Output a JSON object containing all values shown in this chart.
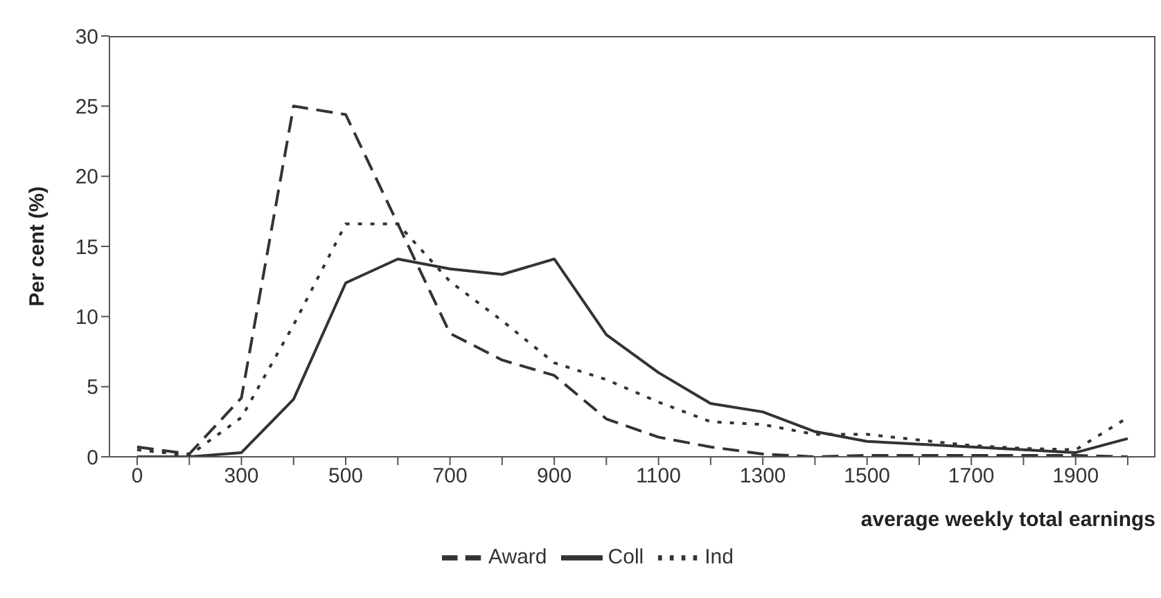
{
  "chart_data": {
    "type": "line",
    "ylabel": "Per cent (%)",
    "xlabel": "average weekly total earnings",
    "categories": [
      "0",
      null,
      "300",
      null,
      "500",
      null,
      "700",
      null,
      "900",
      null,
      "1100",
      null,
      "1300",
      null,
      "1500",
      null,
      "1700",
      null,
      "1900",
      null
    ],
    "series": [
      {
        "name": "Award",
        "color": "#333333",
        "line_style": "dashed",
        "values": [
          0.7,
          0.2,
          4.2,
          25,
          24.4,
          16.6,
          8.8,
          6.9,
          5.8,
          2.7,
          1.4,
          0.7,
          0.2,
          0,
          0.1,
          0.1,
          0.1,
          0.1,
          0.1,
          0
        ]
      },
      {
        "name": "Coll",
        "color": "#333333",
        "line_style": "solid",
        "values": [
          0,
          0,
          0.3,
          4.1,
          12.4,
          14.1,
          13.4,
          13.0,
          14.1,
          8.7,
          6.0,
          3.8,
          3.2,
          1.8,
          1.1,
          0.9,
          0.7,
          0.5,
          0.3,
          1.3
        ]
      },
      {
        "name": "Ind",
        "color": "#333333",
        "line_style": "dotted",
        "values": [
          0.5,
          0.1,
          2.8,
          9.4,
          16.6,
          16.6,
          12.5,
          9.7,
          6.7,
          5.5,
          3.9,
          2.5,
          2.3,
          1.6,
          1.6,
          1.2,
          0.8,
          0.6,
          0.5,
          2.8
        ]
      }
    ],
    "ylim": [
      0,
      30
    ],
    "yticks": [
      0,
      5,
      10,
      15,
      20,
      25,
      30
    ],
    "legend": "bottom",
    "marker": "none"
  }
}
